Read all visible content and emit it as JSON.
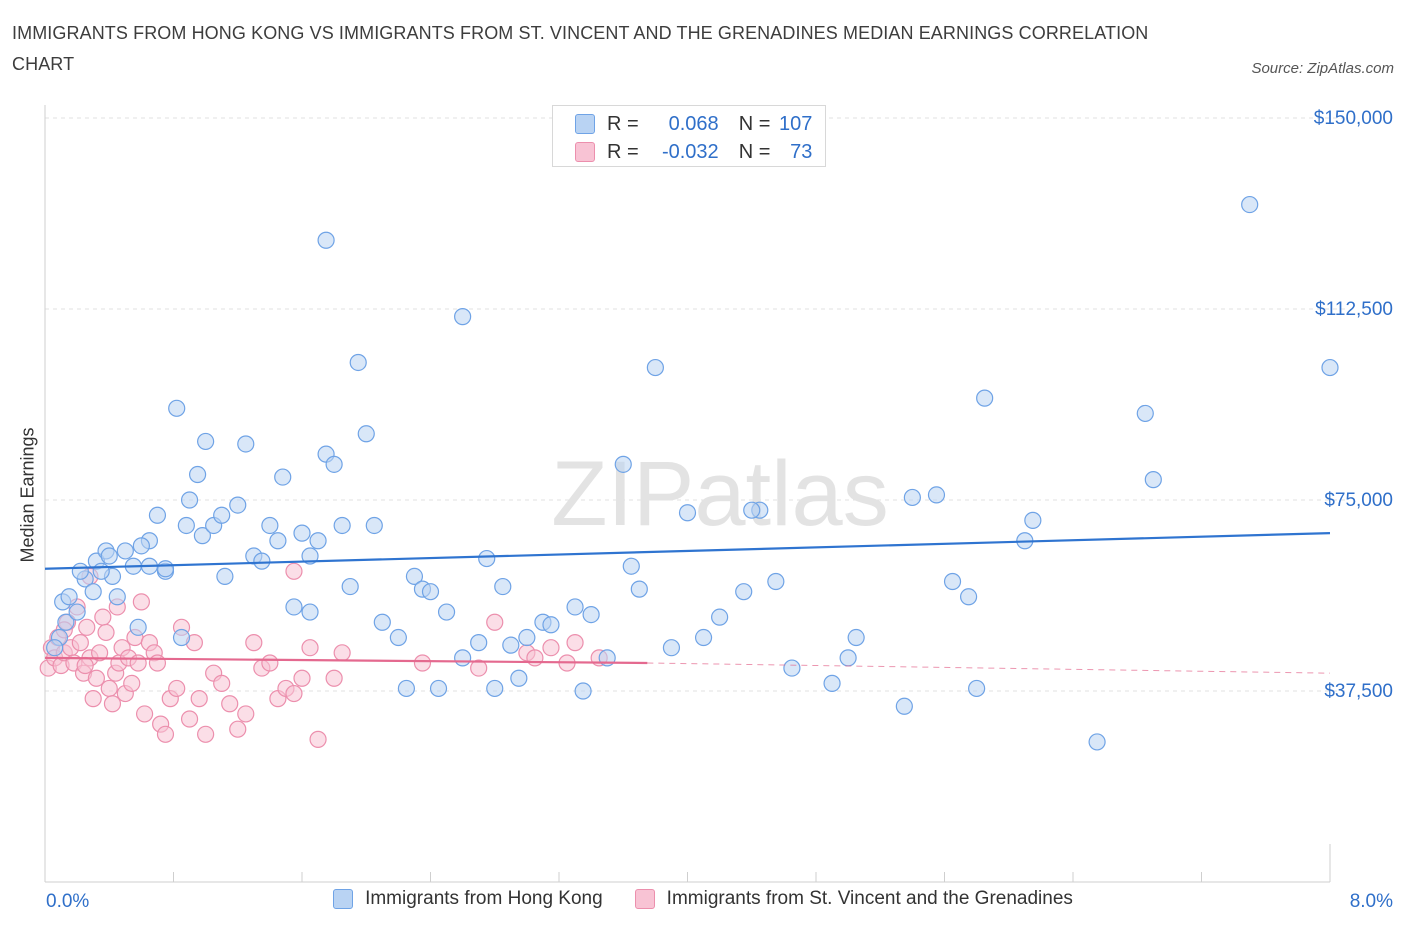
{
  "chart_data": {
    "type": "scatter",
    "title": "IMMIGRANTS FROM HONG KONG VS IMMIGRANTS FROM ST. VINCENT AND THE GRENADINES MEDIAN EARNINGS CORRELATION CHART",
    "source": "Source: ZipAtlas.com",
    "ylabel": "Median Earnings",
    "xlim": [
      0,
      8
    ],
    "ylim": [
      0,
      150000
    ],
    "x_tick_labels": [
      "0.0%",
      "8.0%"
    ],
    "y_ticks": [
      {
        "value": 150000,
        "label": "$150,000"
      },
      {
        "value": 112500,
        "label": "$112,500"
      },
      {
        "value": 75000,
        "label": "$75,000"
      },
      {
        "value": 37500,
        "label": "$37,500"
      }
    ],
    "watermark": "ZIPatlas",
    "legend": [
      {
        "r_label": "R =",
        "r_value": "0.068",
        "n_label": "N =",
        "n_value": "107"
      },
      {
        "r_label": "R =",
        "r_value": "-0.032",
        "n_label": "N =",
        "n_value": "73"
      }
    ],
    "series": [
      {
        "name": "Immigrants from Hong Kong",
        "color": "#6fa3e6",
        "fill": "#b9d3f3",
        "trend_color": "#2f74d0",
        "trend": {
          "x0": 0,
          "y0": 61500,
          "x1": 8,
          "y1": 68500
        },
        "points": [
          [
            0.13,
            51000
          ],
          [
            0.09,
            48000
          ],
          [
            0.11,
            55000
          ],
          [
            0.06,
            46000
          ],
          [
            0.15,
            56000
          ],
          [
            0.2,
            53000
          ],
          [
            0.25,
            59500
          ],
          [
            0.32,
            63000
          ],
          [
            0.38,
            65000
          ],
          [
            0.42,
            60000
          ],
          [
            0.5,
            65000
          ],
          [
            0.55,
            62000
          ],
          [
            0.65,
            62000
          ],
          [
            0.7,
            72000
          ],
          [
            0.75,
            61000
          ],
          [
            0.88,
            70000
          ],
          [
            0.95,
            80000
          ],
          [
            1.0,
            86500
          ],
          [
            0.98,
            68000
          ],
          [
            1.05,
            70000
          ],
          [
            1.1,
            72000
          ],
          [
            1.12,
            60000
          ],
          [
            1.2,
            74000
          ],
          [
            1.25,
            86000
          ],
          [
            1.3,
            64000
          ],
          [
            1.35,
            63000
          ],
          [
            1.4,
            70000
          ],
          [
            1.45,
            67000
          ],
          [
            1.55,
            54000
          ],
          [
            1.6,
            68500
          ],
          [
            1.65,
            64000
          ],
          [
            1.7,
            67000
          ],
          [
            1.75,
            84000
          ],
          [
            1.8,
            82000
          ],
          [
            1.85,
            70000
          ],
          [
            1.9,
            58000
          ],
          [
            1.95,
            102000
          ],
          [
            2.0,
            88000
          ],
          [
            2.05,
            70000
          ],
          [
            2.1,
            51000
          ],
          [
            2.2,
            48000
          ],
          [
            2.3,
            60000
          ],
          [
            2.35,
            57500
          ],
          [
            2.4,
            57000
          ],
          [
            2.5,
            53000
          ],
          [
            2.6,
            44000
          ],
          [
            2.7,
            47000
          ],
          [
            2.75,
            63500
          ],
          [
            2.85,
            58000
          ],
          [
            2.9,
            46500
          ],
          [
            3.0,
            48000
          ],
          [
            3.1,
            51000
          ],
          [
            3.15,
            50500
          ],
          [
            3.3,
            54000
          ],
          [
            3.4,
            52500
          ],
          [
            3.5,
            44000
          ],
          [
            3.6,
            82000
          ],
          [
            3.7,
            57500
          ],
          [
            3.8,
            101000
          ],
          [
            3.9,
            46000
          ],
          [
            4.0,
            72500
          ],
          [
            4.1,
            48000
          ],
          [
            4.2,
            52000
          ],
          [
            4.35,
            57000
          ],
          [
            4.45,
            73000
          ],
          [
            4.55,
            59000
          ],
          [
            4.9,
            39000
          ],
          [
            5.0,
            44000
          ],
          [
            5.05,
            48000
          ],
          [
            5.35,
            34500
          ],
          [
            5.55,
            76000
          ],
          [
            5.65,
            59000
          ],
          [
            5.75,
            56000
          ],
          [
            5.8,
            38000
          ],
          [
            5.85,
            95000
          ],
          [
            6.1,
            67000
          ],
          [
            6.15,
            71000
          ],
          [
            6.55,
            27500
          ],
          [
            6.9,
            79000
          ],
          [
            7.5,
            133000
          ],
          [
            8.0,
            101000
          ],
          [
            1.65,
            53000
          ],
          [
            1.75,
            126000
          ],
          [
            2.25,
            38000
          ],
          [
            2.45,
            38000
          ],
          [
            2.6,
            111000
          ],
          [
            2.8,
            38000
          ],
          [
            2.95,
            40000
          ],
          [
            3.35,
            37500
          ],
          [
            5.4,
            75500
          ],
          [
            4.65,
            42000
          ],
          [
            6.85,
            92000
          ],
          [
            4.4,
            73000
          ],
          [
            3.65,
            62000
          ],
          [
            0.35,
            61000
          ],
          [
            0.22,
            61000
          ],
          [
            0.65,
            67000
          ],
          [
            0.82,
            93000
          ],
          [
            0.9,
            75000
          ],
          [
            1.48,
            79500
          ],
          [
            0.58,
            50000
          ],
          [
            0.3,
            57000
          ],
          [
            0.45,
            56000
          ],
          [
            0.6,
            66000
          ],
          [
            0.75,
            61500
          ],
          [
            0.4,
            64000
          ],
          [
            0.85,
            48000
          ]
        ]
      },
      {
        "name": "Immigrants from St. Vincent and the Grenadines",
        "color": "#ec8fad",
        "fill": "#f8c3d4",
        "trend_color": "#e4698f",
        "trend": {
          "x0": 0,
          "y0": 44000,
          "x1": 3.75,
          "y1": 43000
        },
        "trend_dash": {
          "x0": 3.75,
          "y0": 43000,
          "x1": 8,
          "y1": 41000
        },
        "points": [
          [
            0.02,
            42000
          ],
          [
            0.04,
            46000
          ],
          [
            0.06,
            44000
          ],
          [
            0.08,
            48000
          ],
          [
            0.1,
            42500
          ],
          [
            0.12,
            45000
          ],
          [
            0.14,
            51000
          ],
          [
            0.16,
            46000
          ],
          [
            0.18,
            43000
          ],
          [
            0.2,
            54000
          ],
          [
            0.22,
            47000
          ],
          [
            0.24,
            41000
          ],
          [
            0.26,
            50000
          ],
          [
            0.28,
            44000
          ],
          [
            0.3,
            36000
          ],
          [
            0.32,
            40000
          ],
          [
            0.34,
            45000
          ],
          [
            0.36,
            52000
          ],
          [
            0.38,
            49000
          ],
          [
            0.4,
            38000
          ],
          [
            0.42,
            35000
          ],
          [
            0.44,
            41000
          ],
          [
            0.46,
            43000
          ],
          [
            0.48,
            46000
          ],
          [
            0.5,
            37000
          ],
          [
            0.52,
            44000
          ],
          [
            0.54,
            39000
          ],
          [
            0.56,
            48000
          ],
          [
            0.58,
            43000
          ],
          [
            0.6,
            55000
          ],
          [
            0.62,
            33000
          ],
          [
            0.65,
            47000
          ],
          [
            0.68,
            45000
          ],
          [
            0.72,
            31000
          ],
          [
            0.75,
            29000
          ],
          [
            0.78,
            36000
          ],
          [
            0.82,
            38000
          ],
          [
            0.85,
            50000
          ],
          [
            0.9,
            32000
          ],
          [
            0.93,
            47000
          ],
          [
            0.96,
            36000
          ],
          [
            1.0,
            29000
          ],
          [
            1.05,
            41000
          ],
          [
            1.1,
            39000
          ],
          [
            1.15,
            35000
          ],
          [
            1.2,
            30000
          ],
          [
            1.25,
            33000
          ],
          [
            1.3,
            47000
          ],
          [
            1.35,
            42000
          ],
          [
            1.4,
            43000
          ],
          [
            1.45,
            36000
          ],
          [
            1.5,
            38000
          ],
          [
            1.55,
            37000
          ],
          [
            1.6,
            40000
          ],
          [
            1.65,
            46000
          ],
          [
            1.7,
            28000
          ],
          [
            1.8,
            40000
          ],
          [
            1.85,
            45000
          ],
          [
            2.35,
            43000
          ],
          [
            2.7,
            42000
          ],
          [
            2.8,
            51000
          ],
          [
            3.0,
            45000
          ],
          [
            3.05,
            44000
          ],
          [
            3.15,
            46000
          ],
          [
            3.25,
            43000
          ],
          [
            3.3,
            47000
          ],
          [
            3.45,
            44000
          ],
          [
            0.25,
            42500
          ],
          [
            0.45,
            54000
          ],
          [
            0.12,
            49500
          ],
          [
            0.28,
            60000
          ],
          [
            0.7,
            43000
          ],
          [
            1.55,
            61000
          ]
        ]
      }
    ]
  }
}
